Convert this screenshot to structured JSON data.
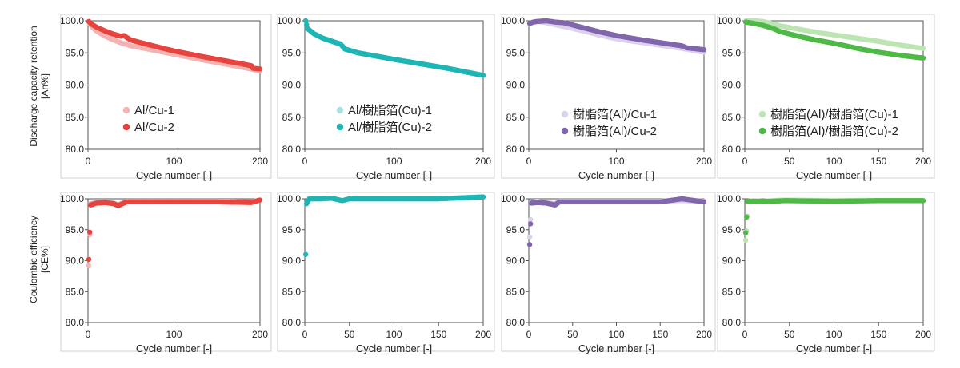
{
  "row_ylabels": [
    [
      "Discharge capacity retention",
      "[Ah%]"
    ],
    [
      "Coulombic efficiency",
      "[CE%]"
    ]
  ],
  "chart_data": [
    {
      "type": "scatter",
      "xlabel": "Cycle number [-]",
      "xticks": [
        0,
        100,
        200
      ],
      "xlim": [
        0,
        200
      ],
      "yticks": [
        "100.0",
        "95.0",
        "90.0",
        "85.0",
        "80.0"
      ],
      "ylim": [
        80,
        100
      ],
      "legend_position": "center",
      "series": [
        {
          "name": "Al/Cu-1",
          "color": "#f4b3b3",
          "points": [
            [
              1,
              99.8
            ],
            [
              5,
              99.0
            ],
            [
              10,
              98.4
            ],
            [
              20,
              97.6
            ],
            [
              30,
              97.0
            ],
            [
              40,
              96.5
            ],
            [
              50,
              96.1
            ],
            [
              70,
              95.6
            ],
            [
              100,
              94.8
            ],
            [
              130,
              94.0
            ],
            [
              150,
              93.5
            ],
            [
              175,
              92.9
            ],
            [
              200,
              92.2
            ]
          ]
        },
        {
          "name": "Al/Cu-2",
          "color": "#e8443f",
          "points": [
            [
              1,
              99.9
            ],
            [
              5,
              99.4
            ],
            [
              10,
              99.0
            ],
            [
              20,
              98.4
            ],
            [
              30,
              97.9
            ],
            [
              38,
              97.6
            ],
            [
              42,
              97.7
            ],
            [
              45,
              97.4
            ],
            [
              50,
              97.0
            ],
            [
              70,
              96.3
            ],
            [
              100,
              95.3
            ],
            [
              130,
              94.5
            ],
            [
              150,
              94.0
            ],
            [
              175,
              93.4
            ],
            [
              190,
              93.0
            ],
            [
              192,
              92.6
            ],
            [
              200,
              92.5
            ]
          ]
        }
      ]
    },
    {
      "type": "scatter",
      "xlabel": "Cycle number [-]",
      "xticks": [
        0,
        100,
        200
      ],
      "xlim": [
        0,
        200
      ],
      "yticks": [
        "100.0",
        "95.0",
        "90.0",
        "85.0",
        "80.0"
      ],
      "ylim": [
        80,
        100
      ],
      "legend_position": "center",
      "series": [
        {
          "name": "Al/樹脂箔(Cu)-1",
          "color": "#a9e2e2",
          "points": [
            [
              1,
              100.0
            ],
            [
              3,
              98.8
            ],
            [
              10,
              98.0
            ],
            [
              20,
              97.3
            ],
            [
              35,
              96.6
            ],
            [
              40,
              96.4
            ],
            [
              45,
              95.6
            ],
            [
              60,
              95.0
            ],
            [
              80,
              94.5
            ],
            [
              100,
              94.0
            ],
            [
              130,
              93.3
            ],
            [
              160,
              92.6
            ],
            [
              200,
              91.5
            ]
          ]
        },
        {
          "name": "Al/樹脂箔(Cu)-2",
          "color": "#1fb5b5",
          "points": [
            [
              1,
              100.0
            ],
            [
              3,
              98.8
            ],
            [
              10,
              98.0
            ],
            [
              20,
              97.3
            ],
            [
              35,
              96.6
            ],
            [
              40,
              96.4
            ],
            [
              45,
              95.6
            ],
            [
              60,
              95.0
            ],
            [
              80,
              94.5
            ],
            [
              100,
              94.0
            ],
            [
              130,
              93.3
            ],
            [
              160,
              92.6
            ],
            [
              200,
              91.5
            ]
          ]
        }
      ]
    },
    {
      "type": "scatter",
      "xlabel": "Cycle number [-]",
      "xticks": [
        0,
        100,
        200
      ],
      "xlim": [
        0,
        200
      ],
      "yticks": [
        "100.0",
        "95.0",
        "90.0",
        "85.0",
        "80.0"
      ],
      "ylim": [
        80,
        100
      ],
      "legend_position": "bottom-center",
      "series": [
        {
          "name": "樹脂箔(Al)/Cu-1",
          "color": "#ddd2ec",
          "points": [
            [
              1,
              99.5
            ],
            [
              5,
              99.8
            ],
            [
              10,
              99.9
            ],
            [
              20,
              99.7
            ],
            [
              30,
              99.4
            ],
            [
              40,
              99.1
            ],
            [
              60,
              98.5
            ],
            [
              80,
              97.8
            ],
            [
              100,
              97.2
            ],
            [
              130,
              96.6
            ],
            [
              150,
              96.2
            ],
            [
              175,
              95.7
            ],
            [
              200,
              95.1
            ]
          ]
        },
        {
          "name": "樹脂箔(Al)/Cu-2",
          "color": "#8166ad",
          "points": [
            [
              1,
              99.6
            ],
            [
              5,
              99.8
            ],
            [
              10,
              99.9
            ],
            [
              20,
              100.0
            ],
            [
              30,
              99.8
            ],
            [
              40,
              99.7
            ],
            [
              60,
              99.0
            ],
            [
              80,
              98.3
            ],
            [
              100,
              97.7
            ],
            [
              130,
              97.0
            ],
            [
              150,
              96.6
            ],
            [
              175,
              96.1
            ],
            [
              180,
              95.8
            ],
            [
              200,
              95.5
            ]
          ]
        }
      ]
    },
    {
      "type": "scatter",
      "xlabel": "Cycle number [-]",
      "xticks": [
        0,
        50,
        100,
        150,
        200
      ],
      "xlim": [
        0,
        200
      ],
      "yticks": [
        "100.0",
        "95.0",
        "90.0",
        "85.0",
        "80.0"
      ],
      "ylim": [
        80,
        100
      ],
      "legend_position": "bottom-center",
      "series": [
        {
          "name": "樹脂箔(Al)/樹脂箔(Cu)-1",
          "color": "#bde5b3",
          "points": [
            [
              1,
              100.0
            ],
            [
              10,
              100.0
            ],
            [
              20,
              99.9
            ],
            [
              30,
              99.6
            ],
            [
              40,
              99.2
            ],
            [
              60,
              98.7
            ],
            [
              80,
              98.2
            ],
            [
              100,
              97.8
            ],
            [
              130,
              97.2
            ],
            [
              150,
              96.8
            ],
            [
              175,
              96.2
            ],
            [
              200,
              95.7
            ]
          ]
        },
        {
          "name": "樹脂箔(Al)/樹脂箔(Cu)-2",
          "color": "#4fb947",
          "points": [
            [
              1,
              99.8
            ],
            [
              10,
              99.6
            ],
            [
              20,
              99.3
            ],
            [
              30,
              98.9
            ],
            [
              40,
              98.3
            ],
            [
              60,
              97.6
            ],
            [
              80,
              97.0
            ],
            [
              100,
              96.5
            ],
            [
              130,
              95.6
            ],
            [
              150,
              95.1
            ],
            [
              175,
              94.6
            ],
            [
              200,
              94.2
            ]
          ]
        }
      ]
    },
    {
      "type": "scatter",
      "xlabel": "Cycle number [-]",
      "xticks": [
        0,
        100,
        200
      ],
      "xlim": [
        0,
        200
      ],
      "yticks": [
        "100.0",
        "95.0",
        "90.0",
        "85.0",
        "80.0"
      ],
      "ylim": [
        80,
        100
      ],
      "series": [
        {
          "name": "Al/Cu-1",
          "color": "#f4b3b3",
          "points": [
            [
              1,
              89.2
            ],
            [
              3,
              99.2
            ],
            [
              10,
              99.4
            ],
            [
              20,
              99.4
            ],
            [
              30,
              99.3
            ],
            [
              35,
              99.0
            ],
            [
              45,
              99.6
            ],
            [
              80,
              99.6
            ],
            [
              100,
              99.6
            ],
            [
              150,
              99.6
            ],
            [
              190,
              99.5
            ],
            [
              200,
              99.8
            ]
          ]
        },
        {
          "name": "Al/Cu-2",
          "color": "#e8443f",
          "points": [
            [
              1,
              90.2
            ],
            [
              3,
              99.0
            ],
            [
              10,
              99.3
            ],
            [
              20,
              99.4
            ],
            [
              30,
              99.2
            ],
            [
              35,
              98.9
            ],
            [
              45,
              99.5
            ],
            [
              80,
              99.5
            ],
            [
              100,
              99.5
            ],
            [
              150,
              99.5
            ],
            [
              190,
              99.4
            ],
            [
              200,
              99.8
            ]
          ]
        }
      ]
    },
    {
      "type": "scatter",
      "xlabel": "Cycle number [-]",
      "xticks": [
        0,
        50,
        100,
        150,
        200
      ],
      "xlim": [
        0,
        200
      ],
      "yticks": [
        "100.0",
        "95.0",
        "90.0",
        "85.0",
        "80.0"
      ],
      "ylim": [
        80,
        100
      ],
      "series": [
        {
          "name": "Al/樹脂箔(Cu)-1",
          "color": "#a9e2e2",
          "points": [
            [
              1,
              91.0
            ],
            [
              2,
              99.2
            ],
            [
              5,
              100.0
            ],
            [
              20,
              100.0
            ],
            [
              30,
              100.1
            ],
            [
              42,
              99.7
            ],
            [
              50,
              100.0
            ],
            [
              100,
              100.0
            ],
            [
              150,
              100.0
            ],
            [
              200,
              100.3
            ]
          ]
        },
        {
          "name": "Al/樹脂箔(Cu)-2",
          "color": "#1fb5b5",
          "points": [
            [
              1,
              91.0
            ],
            [
              2,
              99.2
            ],
            [
              5,
              100.0
            ],
            [
              20,
              100.0
            ],
            [
              30,
              100.1
            ],
            [
              42,
              99.7
            ],
            [
              50,
              100.0
            ],
            [
              100,
              100.0
            ],
            [
              150,
              100.0
            ],
            [
              200,
              100.3
            ]
          ]
        }
      ]
    },
    {
      "type": "scatter",
      "xlabel": "Cycle number [-]",
      "xticks": [
        0,
        50,
        100,
        150,
        200
      ],
      "xlim": [
        0,
        200
      ],
      "yticks": [
        "100.0",
        "95.0",
        "90.0",
        "85.0",
        "80.0"
      ],
      "ylim": [
        80,
        100
      ],
      "series": [
        {
          "name": "樹脂箔(Al)/Cu-1",
          "color": "#ddd2ec",
          "points": [
            [
              1,
              93.8
            ],
            [
              3,
              99.5
            ],
            [
              10,
              99.6
            ],
            [
              20,
              99.4
            ],
            [
              30,
              99.2
            ],
            [
              35,
              99.6
            ],
            [
              50,
              99.6
            ],
            [
              100,
              99.6
            ],
            [
              150,
              99.6
            ],
            [
              175,
              99.7
            ],
            [
              200,
              99.6
            ]
          ]
        },
        {
          "name": "樹脂箔(Al)/Cu-2",
          "color": "#8166ad",
          "points": [
            [
              1,
              92.6
            ],
            [
              3,
              99.3
            ],
            [
              10,
              99.4
            ],
            [
              20,
              99.3
            ],
            [
              30,
              99.0
            ],
            [
              35,
              99.5
            ],
            [
              50,
              99.5
            ],
            [
              100,
              99.5
            ],
            [
              150,
              99.5
            ],
            [
              175,
              100.0
            ],
            [
              200,
              99.5
            ]
          ]
        }
      ]
    },
    {
      "type": "scatter",
      "xlabel": "Cycle number [-]",
      "xticks": [
        0,
        50,
        100,
        150,
        200
      ],
      "xlim": [
        0,
        200
      ],
      "yticks": [
        "100.0",
        "95.0",
        "90.0",
        "85.0",
        "80.0"
      ],
      "ylim": [
        80,
        100
      ],
      "series": [
        {
          "name": "樹脂箔(Al)/樹脂箔(Cu)-1",
          "color": "#bde5b3",
          "points": [
            [
              1,
              93.3
            ],
            [
              2,
              94.8
            ],
            [
              4,
              99.6
            ],
            [
              10,
              99.7
            ],
            [
              20,
              99.6
            ],
            [
              30,
              99.7
            ],
            [
              45,
              99.8
            ],
            [
              100,
              99.7
            ],
            [
              150,
              99.7
            ],
            [
              200,
              99.7
            ]
          ]
        },
        {
          "name": "樹脂箔(Al)/樹脂箔(Cu)-2",
          "color": "#4fb947",
          "points": [
            [
              1,
              94.5
            ],
            [
              3,
              99.6
            ],
            [
              10,
              99.6
            ],
            [
              20,
              99.6
            ],
            [
              30,
              99.6
            ],
            [
              45,
              99.7
            ],
            [
              100,
              99.6
            ],
            [
              150,
              99.7
            ],
            [
              200,
              99.7
            ]
          ]
        }
      ]
    }
  ]
}
